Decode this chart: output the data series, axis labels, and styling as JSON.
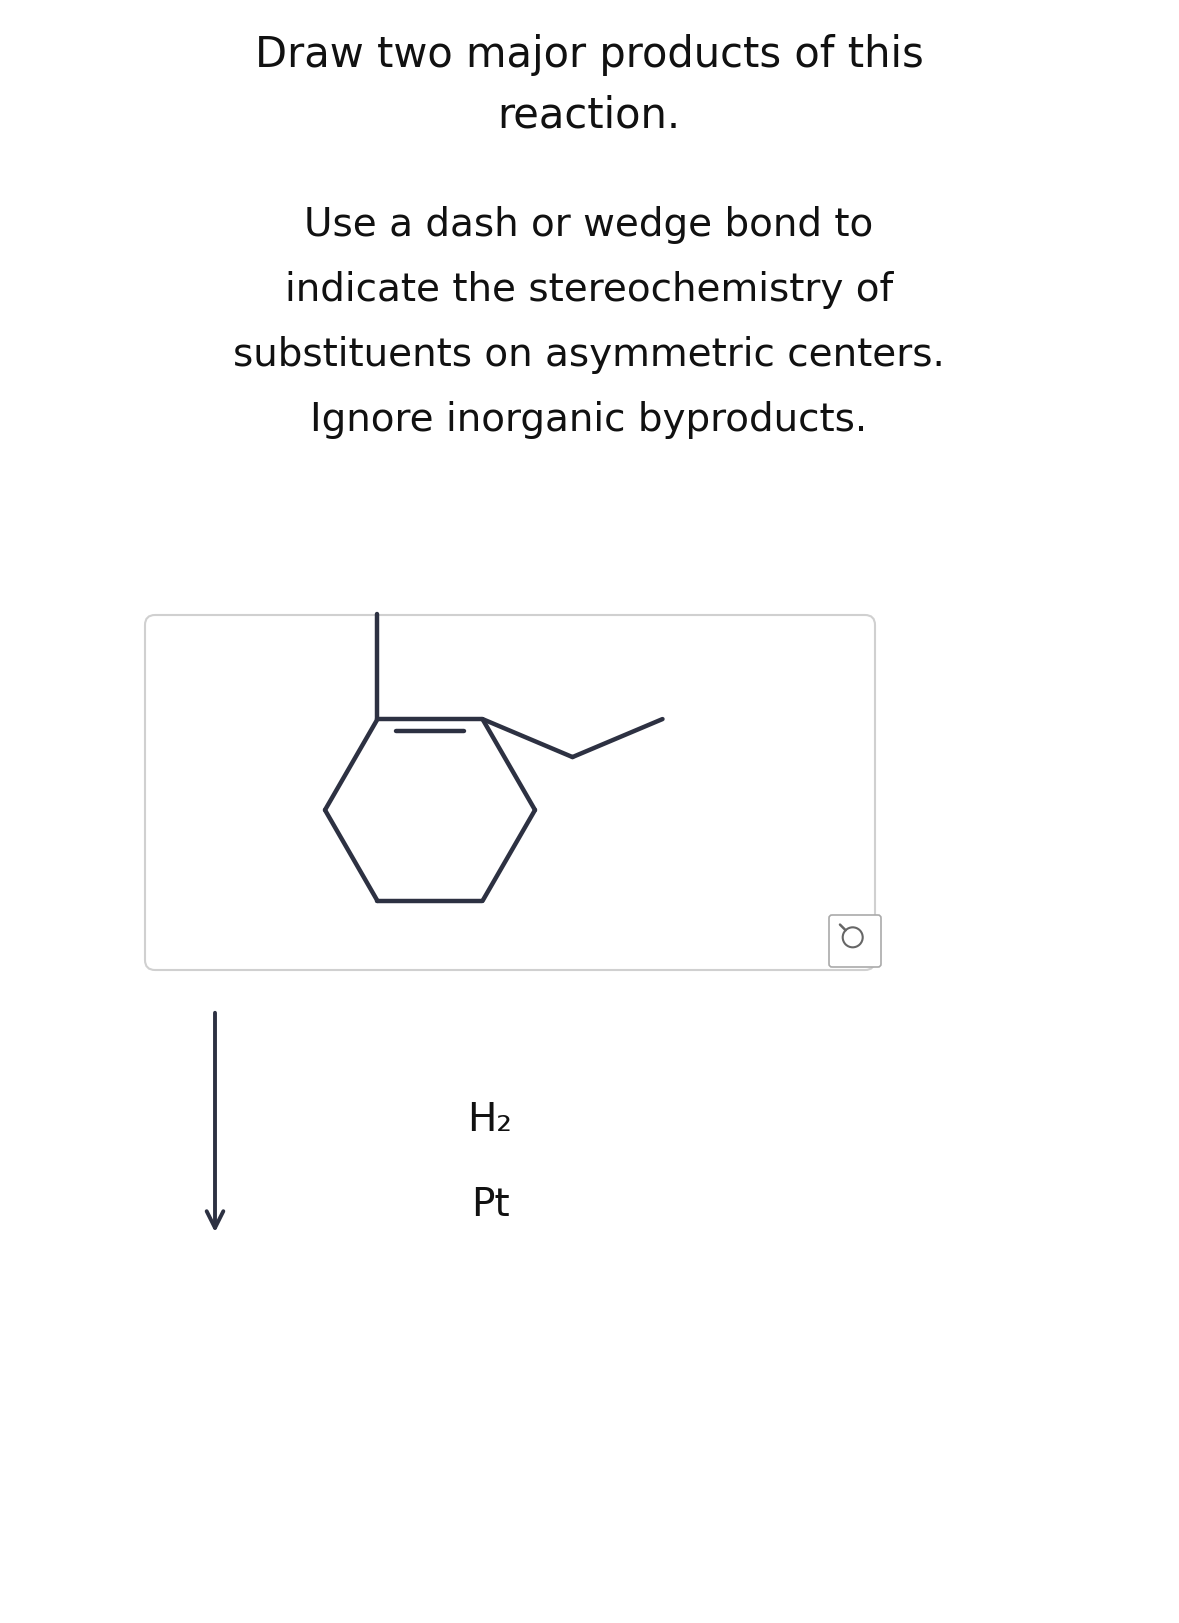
{
  "background_color": "#ffffff",
  "title_line1": "Draw two major products of this",
  "title_line2": "reaction.",
  "instruction_lines": [
    "Use a dash or wedge bond to",
    "indicate the stereochemistry of",
    "substituents on asymmetric centers.",
    "Ignore inorganic byproducts."
  ],
  "reagent_line1": "H₂",
  "reagent_line2": "Pt",
  "molecule_color": "#2d3142",
  "box_edge_color": "#d0d0d0",
  "text_color": "#111111",
  "arrow_color": "#2d3142",
  "title_fontsize": 30,
  "instruction_fontsize": 28,
  "reagent_fontsize": 28
}
